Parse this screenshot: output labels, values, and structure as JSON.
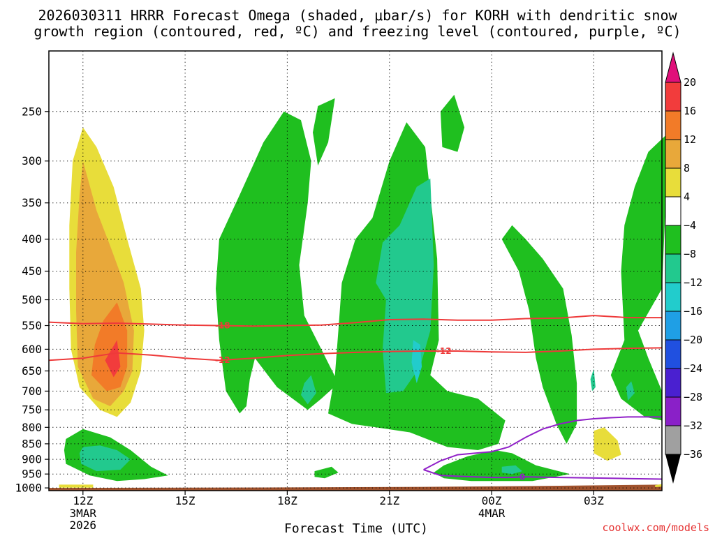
{
  "chart_data": {
    "type": "time-height contour",
    "title_line1": "2026030311 HRRR Forecast Omega (shaded, μbar/s) for KORH with dendritic snow",
    "title_line2": "growth region (contoured, red, ºC) and freezing level (contoured, purple, ºC)",
    "xlabel": "Forecast Time (UTC)",
    "credit": "coolwx.com/models",
    "y_axis": {
      "ticks": [
        250,
        300,
        350,
        400,
        450,
        500,
        550,
        600,
        650,
        700,
        750,
        800,
        850,
        900,
        950,
        1000
      ],
      "tick_labels": [
        "250",
        "300",
        "350",
        "400",
        "450",
        "500",
        "550",
        "600",
        "650",
        "700",
        "750",
        "800",
        "850",
        "900",
        "950",
        "1000"
      ],
      "range": [
        1010,
        200
      ],
      "scale": "log-pressure",
      "unit": "hPa"
    },
    "x_axis": {
      "range": [
        11,
        29
      ],
      "ticks": [
        {
          "hour": 12,
          "label": "12Z",
          "sub": [
            "3MAR",
            "2026"
          ]
        },
        {
          "hour": 15,
          "label": "15Z",
          "sub": []
        },
        {
          "hour": 18,
          "label": "18Z",
          "sub": []
        },
        {
          "hour": 21,
          "label": "21Z",
          "sub": []
        },
        {
          "hour": 24,
          "label": "00Z",
          "sub": [
            "4MAR"
          ]
        },
        {
          "hour": 27,
          "label": "03Z",
          "sub": []
        }
      ]
    },
    "grid": true,
    "colorbar": {
      "labels": [
        "20",
        "16",
        "12",
        "8",
        "4",
        "−4",
        "−8",
        "−12",
        "−16",
        "−20",
        "−24",
        "−28",
        "−32",
        "−36"
      ],
      "colors": [
        "#f23c3c",
        "#f27b28",
        "#e8a83a",
        "#e8dd3a",
        "#ffffff",
        "#1fbf1f",
        "#22c98e",
        "#22cccc",
        "#1f9fe5",
        "#2050e0",
        "#4a20d0",
        "#8a20c8",
        "#a0a0a0"
      ],
      "top_arrow_color": "#e0107a",
      "bottom_arrow_color": "#000000"
    },
    "fill_colors": {
      "w4": "#e8dd3a",
      "w8": "#e8a83a",
      "w12": "#f27b28",
      "w16": "#f23c3c",
      "c4": "#1fbf1f",
      "c8": "#22c98e",
      "c12": "#22cccc",
      "ground": "#a0522d"
    },
    "regions": [
      {
        "level": "w4",
        "pts": [
          [
            12.0,
            265
          ],
          [
            12.4,
            285
          ],
          [
            12.9,
            330
          ],
          [
            13.3,
            400
          ],
          [
            13.7,
            480
          ],
          [
            13.8,
            560
          ],
          [
            13.7,
            650
          ],
          [
            13.4,
            730
          ],
          [
            13.0,
            770
          ],
          [
            12.5,
            750
          ],
          [
            11.9,
            690
          ],
          [
            11.65,
            600
          ],
          [
            11.6,
            480
          ],
          [
            11.6,
            380
          ],
          [
            11.7,
            300
          ]
        ]
      },
      {
        "level": "w8",
        "pts": [
          [
            12.0,
            300
          ],
          [
            12.4,
            360
          ],
          [
            12.8,
            410
          ],
          [
            13.2,
            470
          ],
          [
            13.5,
            560
          ],
          [
            13.45,
            650
          ],
          [
            13.2,
            700
          ],
          [
            12.8,
            740
          ],
          [
            12.3,
            720
          ],
          [
            11.85,
            640
          ],
          [
            11.8,
            520
          ],
          [
            11.8,
            420
          ],
          [
            11.9,
            340
          ]
        ]
      },
      {
        "level": "w12",
        "pts": [
          [
            13.0,
            505
          ],
          [
            13.3,
            560
          ],
          [
            13.3,
            640
          ],
          [
            13.1,
            690
          ],
          [
            12.7,
            700
          ],
          [
            12.25,
            660
          ],
          [
            12.35,
            590
          ],
          [
            12.6,
            540
          ]
        ]
      },
      {
        "level": "w16",
        "pts": [
          [
            13.0,
            580
          ],
          [
            13.1,
            640
          ],
          [
            12.9,
            665
          ],
          [
            12.65,
            625
          ]
        ]
      },
      {
        "level": "c4",
        "pts": [
          [
            11.5,
            835
          ],
          [
            12.0,
            805
          ],
          [
            12.8,
            830
          ],
          [
            13.4,
            870
          ],
          [
            14.0,
            925
          ],
          [
            14.5,
            955
          ],
          [
            13.8,
            968
          ],
          [
            13.0,
            975
          ],
          [
            12.2,
            955
          ],
          [
            11.5,
            915
          ],
          [
            11.45,
            870
          ]
        ]
      },
      {
        "level": "c8",
        "pts": [
          [
            12.0,
            860
          ],
          [
            12.5,
            855
          ],
          [
            13.0,
            870
          ],
          [
            13.4,
            900
          ],
          [
            13.1,
            935
          ],
          [
            12.4,
            940
          ],
          [
            11.95,
            915
          ],
          [
            11.9,
            880
          ]
        ]
      },
      {
        "level": "w4",
        "pts": [
          [
            11.3,
            988
          ],
          [
            11.8,
            988
          ],
          [
            12.3,
            988
          ],
          [
            12.3,
            999
          ],
          [
            11.3,
            999
          ]
        ]
      },
      {
        "level": "c4",
        "pts": [
          [
            16.0,
            400
          ],
          [
            16.6,
            340
          ],
          [
            17.3,
            280
          ],
          [
            17.9,
            250
          ],
          [
            18.4,
            258
          ],
          [
            18.7,
            300
          ],
          [
            18.6,
            350
          ],
          [
            18.35,
            440
          ],
          [
            18.5,
            530
          ],
          [
            19.0,
            600
          ],
          [
            19.5,
            680
          ],
          [
            19.0,
            720
          ],
          [
            18.6,
            750
          ],
          [
            17.7,
            690
          ],
          [
            17.05,
            620
          ],
          [
            16.9,
            670
          ],
          [
            16.8,
            740
          ],
          [
            16.6,
            760
          ],
          [
            16.2,
            700
          ],
          [
            16.0,
            580
          ],
          [
            15.9,
            480
          ]
        ]
      },
      {
        "level": "c4",
        "pts": [
          [
            18.9,
            245
          ],
          [
            19.4,
            238
          ],
          [
            19.2,
            280
          ],
          [
            18.9,
            305
          ],
          [
            18.75,
            270
          ]
        ]
      },
      {
        "level": "c4",
        "pts": [
          [
            19.6,
            470
          ],
          [
            20.0,
            400
          ],
          [
            20.5,
            370
          ],
          [
            21.0,
            300
          ],
          [
            21.5,
            260
          ],
          [
            22.05,
            285
          ],
          [
            22.4,
            430
          ],
          [
            22.45,
            580
          ],
          [
            22.2,
            660
          ],
          [
            22.7,
            700
          ],
          [
            23.6,
            720
          ],
          [
            24.4,
            780
          ],
          [
            24.2,
            850
          ],
          [
            23.6,
            870
          ],
          [
            22.7,
            860
          ],
          [
            21.6,
            815
          ],
          [
            20.6,
            800
          ],
          [
            19.9,
            790
          ],
          [
            19.2,
            760
          ],
          [
            19.4,
            660
          ],
          [
            19.5,
            560
          ]
        ]
      },
      {
        "level": "c4",
        "pts": [
          [
            22.5,
            250
          ],
          [
            22.9,
            235
          ],
          [
            23.2,
            265
          ],
          [
            23.0,
            290
          ],
          [
            22.55,
            285
          ]
        ]
      },
      {
        "level": "c4",
        "pts": [
          [
            24.3,
            400
          ],
          [
            24.6,
            380
          ],
          [
            25.0,
            400
          ],
          [
            25.5,
            430
          ],
          [
            26.1,
            480
          ],
          [
            26.35,
            570
          ],
          [
            26.5,
            680
          ],
          [
            26.5,
            790
          ],
          [
            26.2,
            850
          ],
          [
            25.9,
            790
          ],
          [
            25.5,
            690
          ],
          [
            25.3,
            620
          ],
          [
            25.1,
            520
          ],
          [
            24.8,
            450
          ]
        ]
      },
      {
        "level": "c4",
        "pts": [
          [
            28.2,
            330
          ],
          [
            28.6,
            290
          ],
          [
            29.2,
            270
          ],
          [
            29.0,
            480
          ],
          [
            28.3,
            560
          ],
          [
            28.6,
            620
          ],
          [
            29.0,
            700
          ],
          [
            29.0,
            780
          ],
          [
            28.5,
            770
          ],
          [
            27.8,
            720
          ],
          [
            27.5,
            660
          ],
          [
            27.9,
            580
          ],
          [
            27.8,
            450
          ],
          [
            27.9,
            380
          ]
        ]
      },
      {
        "level": "c4",
        "pts": [
          [
            22.6,
            920
          ],
          [
            23.3,
            890
          ],
          [
            24.1,
            870
          ],
          [
            24.6,
            880
          ],
          [
            25.3,
            920
          ],
          [
            26.3,
            950
          ],
          [
            25.2,
            975
          ],
          [
            23.4,
            975
          ],
          [
            22.6,
            965
          ],
          [
            22.3,
            945
          ]
        ]
      },
      {
        "level": "c4",
        "pts": [
          [
            18.8,
            940
          ],
          [
            19.3,
            925
          ],
          [
            19.5,
            945
          ],
          [
            19.1,
            965
          ],
          [
            18.8,
            960
          ]
        ]
      },
      {
        "level": "c8",
        "pts": [
          [
            20.8,
            405
          ],
          [
            21.3,
            380
          ],
          [
            21.8,
            330
          ],
          [
            22.2,
            320
          ],
          [
            22.3,
            440
          ],
          [
            22.2,
            560
          ],
          [
            21.9,
            640
          ],
          [
            21.4,
            700
          ],
          [
            20.9,
            705
          ],
          [
            20.8,
            600
          ],
          [
            20.9,
            500
          ],
          [
            20.6,
            470
          ]
        ]
      },
      {
        "level": "c12",
        "pts": [
          [
            21.9,
            590
          ],
          [
            21.95,
            640
          ],
          [
            21.8,
            680
          ],
          [
            21.65,
            630
          ],
          [
            21.7,
            580
          ]
        ]
      },
      {
        "level": "c8",
        "pts": [
          [
            18.5,
            680
          ],
          [
            18.7,
            660
          ],
          [
            18.85,
            705
          ],
          [
            18.6,
            735
          ],
          [
            18.4,
            710
          ]
        ]
      },
      {
        "level": "c8",
        "pts": [
          [
            27.95,
            690
          ],
          [
            28.1,
            675
          ],
          [
            28.2,
            705
          ],
          [
            28.0,
            725
          ]
        ]
      },
      {
        "level": "c8",
        "pts": [
          [
            26.9,
            670
          ],
          [
            27.0,
            645
          ],
          [
            27.05,
            690
          ],
          [
            26.95,
            700
          ]
        ]
      },
      {
        "level": "c8",
        "pts": [
          [
            24.3,
            925
          ],
          [
            24.7,
            920
          ],
          [
            24.9,
            940
          ],
          [
            24.6,
            950
          ],
          [
            24.3,
            945
          ]
        ]
      },
      {
        "level": "w4",
        "pts": [
          [
            27.0,
            810
          ],
          [
            27.3,
            800
          ],
          [
            27.7,
            840
          ],
          [
            27.8,
            885
          ],
          [
            27.4,
            905
          ],
          [
            27.0,
            880
          ]
        ]
      },
      {
        "level": "w4",
        "pts": [
          [
            28.8,
            990
          ],
          [
            29.0,
            986
          ],
          [
            29.0,
            995
          ],
          [
            28.8,
            997
          ]
        ]
      }
    ],
    "contours": [
      {
        "name": "-18",
        "color": "#ee3a3a",
        "label_at_hour": 16.1,
        "x": [
          11,
          12,
          13,
          14,
          15,
          16,
          17,
          18,
          19,
          20,
          21,
          22,
          23,
          24,
          25,
          26,
          27,
          28,
          29
        ],
        "y": [
          543,
          546,
          545,
          547,
          549,
          550,
          551,
          550,
          549,
          544,
          538,
          537,
          539,
          539,
          536,
          535,
          530,
          534,
          534
        ]
      },
      {
        "name": "-12",
        "color": "#ee3a3a",
        "label_at_hour": 16.1,
        "x": [
          11,
          12,
          13,
          14,
          15,
          16,
          17,
          18,
          19,
          20,
          21,
          22,
          23,
          24,
          25,
          26,
          27,
          28,
          29
        ],
        "y": [
          625,
          620,
          608,
          613,
          620,
          625,
          620,
          614,
          610,
          607,
          605,
          604,
          604,
          606,
          607,
          604,
          600,
          598,
          597
        ]
      },
      {
        "name": "0",
        "color": "#9020c8",
        "label_at_hour": 24.9,
        "x": [
          22.0,
          22.5,
          23.0,
          23.5,
          24.0,
          24.5,
          25.0,
          25.5,
          26.0,
          26.5,
          27.0,
          27.5,
          28.0,
          28.5,
          29.0
        ],
        "y": [
          935,
          955,
          958,
          960,
          962,
          962,
          960,
          961,
          962,
          963,
          964,
          965,
          966,
          967,
          968
        ]
      },
      {
        "name": "0b",
        "color": "#9020c8",
        "label_at_hour": null,
        "x": [
          22.0,
          22.5,
          23.0,
          23.5,
          24.0,
          24.5,
          25.0,
          25.5,
          26.0,
          26.5,
          27.0,
          27.5,
          28.0,
          28.5,
          29.0
        ],
        "y": [
          935,
          905,
          885,
          880,
          875,
          860,
          830,
          805,
          790,
          780,
          775,
          772,
          770,
          770,
          770
        ]
      }
    ],
    "ground_top_hpa": [
      [
        11,
        1000
      ],
      [
        18,
        998
      ],
      [
        22,
        996
      ],
      [
        26,
        992
      ],
      [
        29,
        988
      ]
    ]
  }
}
